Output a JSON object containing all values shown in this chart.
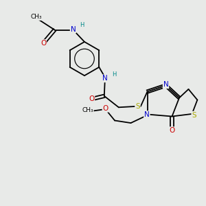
{
  "bg_color": "#e8eae8",
  "atom_colors": {
    "C": "#000000",
    "N": "#0000cc",
    "O": "#cc0000",
    "S": "#aaaa00",
    "H": "#008888"
  },
  "bond_color": "#000000",
  "bond_lw": 1.3,
  "font_size": 7.5,
  "font_size_H": 6.0,
  "font_size_CH3": 6.5
}
